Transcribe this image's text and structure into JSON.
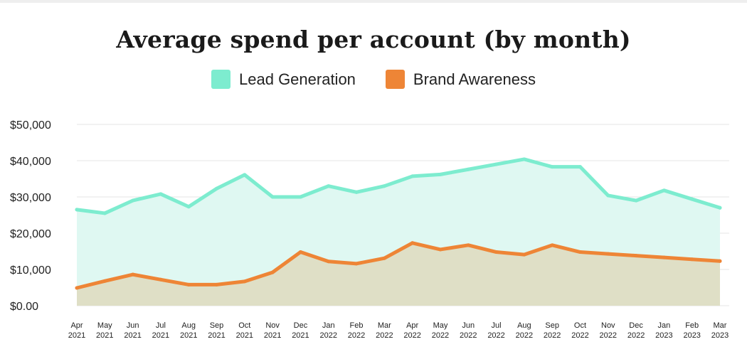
{
  "chart_data": {
    "type": "area",
    "title": "Average spend per account (by month)",
    "xlabel": "",
    "ylabel": "",
    "ylim": [
      0,
      50000
    ],
    "y_ticks": [
      {
        "value": 0,
        "label": "$0.00"
      },
      {
        "value": 10000,
        "label": "$10,000"
      },
      {
        "value": 20000,
        "label": "$20,000"
      },
      {
        "value": 30000,
        "label": "$30,000"
      },
      {
        "value": 40000,
        "label": "$40,000"
      },
      {
        "value": 50000,
        "label": "$50,000"
      }
    ],
    "grid": true,
    "legend_position": "top-center",
    "categories": [
      {
        "month": "Apr",
        "year": "2021"
      },
      {
        "month": "May",
        "year": "2021"
      },
      {
        "month": "Jun",
        "year": "2021"
      },
      {
        "month": "Jul",
        "year": "2021"
      },
      {
        "month": "Aug",
        "year": "2021"
      },
      {
        "month": "Sep",
        "year": "2021"
      },
      {
        "month": "Oct",
        "year": "2021"
      },
      {
        "month": "Nov",
        "year": "2021"
      },
      {
        "month": "Dec",
        "year": "2021"
      },
      {
        "month": "Jan",
        "year": "2022"
      },
      {
        "month": "Feb",
        "year": "2022"
      },
      {
        "month": "Mar",
        "year": "2022"
      },
      {
        "month": "Apr",
        "year": "2022"
      },
      {
        "month": "May",
        "year": "2022"
      },
      {
        "month": "Jun",
        "year": "2022"
      },
      {
        "month": "Jul",
        "year": "2022"
      },
      {
        "month": "Aug",
        "year": "2022"
      },
      {
        "month": "Sep",
        "year": "2022"
      },
      {
        "month": "Oct",
        "year": "2022"
      },
      {
        "month": "Nov",
        "year": "2022"
      },
      {
        "month": "Dec",
        "year": "2022"
      },
      {
        "month": "Jan",
        "year": "2023"
      },
      {
        "month": "Feb",
        "year": "2023"
      },
      {
        "month": "Mar",
        "year": "2023"
      }
    ],
    "series": [
      {
        "name": "Lead Generation",
        "color": "#7deccf",
        "fill": "#dff8f2",
        "values": [
          26500,
          25500,
          29000,
          30800,
          27300,
          32300,
          36100,
          30000,
          30000,
          33000,
          31300,
          33000,
          35700,
          36200,
          37600,
          39000,
          40400,
          38300,
          38300,
          30400,
          29000,
          31800,
          29400,
          27000
        ]
      },
      {
        "name": "Brand Awareness",
        "color": "#ee8536",
        "fill": "#dfdfc6",
        "values": [
          4900,
          6800,
          8600,
          7200,
          5800,
          5800,
          6700,
          9200,
          14800,
          12200,
          11600,
          13100,
          17300,
          15500,
          16700,
          14800,
          14100,
          16700,
          14800,
          14300,
          13800,
          13300,
          12800,
          12300
        ]
      }
    ]
  }
}
